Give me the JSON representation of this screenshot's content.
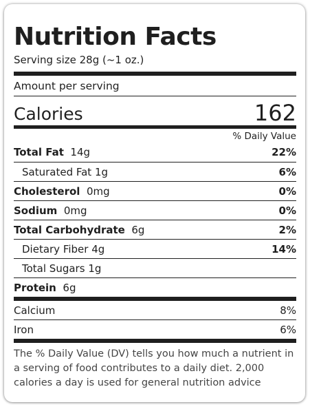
{
  "label": {
    "title": "Nutrition Facts",
    "serving_size": "Serving size 28g (~1 oz.)",
    "amount_per_serving": "Amount per serving",
    "calories_label": "Calories",
    "calories_value": "162",
    "daily_value_header": "% Daily Value"
  },
  "nutrients": [
    {
      "name": "Total Fat",
      "amount": "14g",
      "dv": "22%"
    },
    {
      "name": "Saturated Fat",
      "amount": "1g",
      "dv": "6%"
    },
    {
      "name": "Cholesterol",
      "amount": "0mg",
      "dv": "0%"
    },
    {
      "name": "Sodium",
      "amount": "0mg",
      "dv": "0%"
    },
    {
      "name": "Total Carbohydrate",
      "amount": "6g",
      "dv": "2%"
    },
    {
      "name": "Dietary Fiber",
      "amount": "4g",
      "dv": "14%"
    },
    {
      "name": "Total Sugars",
      "amount": "1g",
      "dv": ""
    },
    {
      "name": "Protein",
      "amount": "6g",
      "dv": ""
    }
  ],
  "vitamins": [
    {
      "name": "Calcium",
      "dv": "8%"
    },
    {
      "name": "Iron",
      "dv": "6%"
    }
  ],
  "footnote": "The % Daily Value (DV) tells you how much a nutrient in a serving of food contributes to a daily diet. 2,000 calories a day is used for general nutrition advice"
}
